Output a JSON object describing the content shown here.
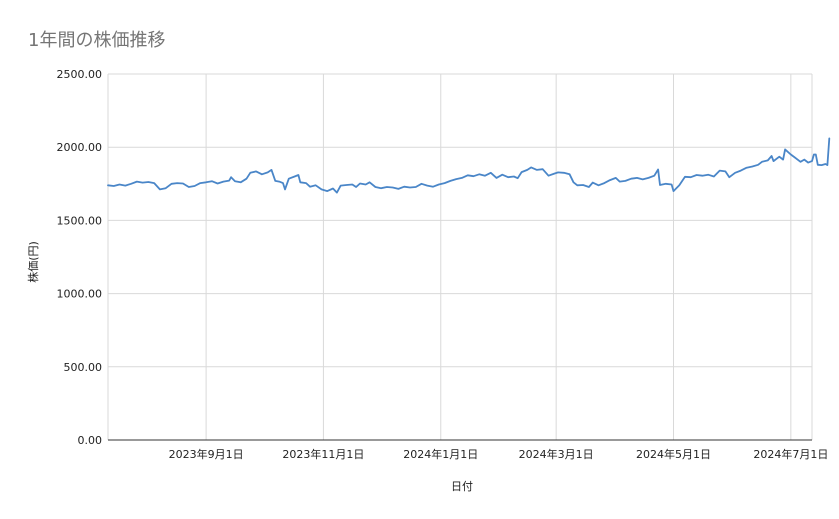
{
  "chart_data": {
    "type": "line",
    "title": "1年間の株価推移",
    "xlabel": "日付",
    "ylabel": "株価(円)",
    "ylim": [
      0,
      2500
    ],
    "yticks": [
      "0.00",
      "500.00",
      "1000.00",
      "1500.00",
      "2000.00",
      "2500.00"
    ],
    "xlim": [
      "2023-07-12",
      "2024-07-12"
    ],
    "xticks": [
      {
        "date": "2023-09-01",
        "label": "2023年9月1日"
      },
      {
        "date": "2023-11-01",
        "label": "2023年11月1日"
      },
      {
        "date": "2024-01-01",
        "label": "2024年1月1日"
      },
      {
        "date": "2024-03-01",
        "label": "2024年3月1日"
      },
      {
        "date": "2024-05-01",
        "label": "2024年5月1日"
      },
      {
        "date": "2024-07-01",
        "label": "2024年7月1日"
      }
    ],
    "grid": true,
    "legend": "none",
    "color": "#4a86c8",
    "series": [
      {
        "points": [
          [
            "2023-07-12",
            1740
          ],
          [
            "2023-07-15",
            1735
          ],
          [
            "2023-07-18",
            1745
          ],
          [
            "2023-07-21",
            1738
          ],
          [
            "2023-07-24",
            1750
          ],
          [
            "2023-07-27",
            1765
          ],
          [
            "2023-07-30",
            1758
          ],
          [
            "2023-08-02",
            1762
          ],
          [
            "2023-08-05",
            1755
          ],
          [
            "2023-08-08",
            1712
          ],
          [
            "2023-08-11",
            1720
          ],
          [
            "2023-08-14",
            1750
          ],
          [
            "2023-08-17",
            1755
          ],
          [
            "2023-08-20",
            1752
          ],
          [
            "2023-08-23",
            1728
          ],
          [
            "2023-08-26",
            1735
          ],
          [
            "2023-08-29",
            1755
          ],
          [
            "2023-09-01",
            1760
          ],
          [
            "2023-09-04",
            1768
          ],
          [
            "2023-09-07",
            1752
          ],
          [
            "2023-09-10",
            1765
          ],
          [
            "2023-09-13",
            1772
          ],
          [
            "2023-09-14",
            1795
          ],
          [
            "2023-09-16",
            1768
          ],
          [
            "2023-09-19",
            1760
          ],
          [
            "2023-09-22",
            1785
          ],
          [
            "2023-09-24",
            1825
          ],
          [
            "2023-09-27",
            1835
          ],
          [
            "2023-09-30",
            1815
          ],
          [
            "2023-10-03",
            1828
          ],
          [
            "2023-10-05",
            1845
          ],
          [
            "2023-10-07",
            1770
          ],
          [
            "2023-10-09",
            1765
          ],
          [
            "2023-10-11",
            1755
          ],
          [
            "2023-10-12",
            1712
          ],
          [
            "2023-10-14",
            1785
          ],
          [
            "2023-10-17",
            1800
          ],
          [
            "2023-10-19",
            1810
          ],
          [
            "2023-10-20",
            1760
          ],
          [
            "2023-10-23",
            1755
          ],
          [
            "2023-10-25",
            1730
          ],
          [
            "2023-10-28",
            1740
          ],
          [
            "2023-10-31",
            1712
          ],
          [
            "2023-11-03",
            1700
          ],
          [
            "2023-11-06",
            1718
          ],
          [
            "2023-11-08",
            1690
          ],
          [
            "2023-11-10",
            1738
          ],
          [
            "2023-11-13",
            1742
          ],
          [
            "2023-11-16",
            1745
          ],
          [
            "2023-11-18",
            1728
          ],
          [
            "2023-11-20",
            1752
          ],
          [
            "2023-11-23",
            1745
          ],
          [
            "2023-11-25",
            1760
          ],
          [
            "2023-11-28",
            1728
          ],
          [
            "2023-12-01",
            1720
          ],
          [
            "2023-12-04",
            1728
          ],
          [
            "2023-12-07",
            1725
          ],
          [
            "2023-12-10",
            1715
          ],
          [
            "2023-12-13",
            1730
          ],
          [
            "2023-12-16",
            1725
          ],
          [
            "2023-12-19",
            1728
          ],
          [
            "2023-12-22",
            1750
          ],
          [
            "2023-12-25",
            1738
          ],
          [
            "2023-12-28",
            1730
          ],
          [
            "2023-12-31",
            1745
          ],
          [
            "2024-01-03",
            1755
          ],
          [
            "2024-01-06",
            1770
          ],
          [
            "2024-01-09",
            1782
          ],
          [
            "2024-01-12",
            1790
          ],
          [
            "2024-01-15",
            1808
          ],
          [
            "2024-01-18",
            1802
          ],
          [
            "2024-01-21",
            1815
          ],
          [
            "2024-01-24",
            1805
          ],
          [
            "2024-01-27",
            1825
          ],
          [
            "2024-01-30",
            1790
          ],
          [
            "2024-02-02",
            1812
          ],
          [
            "2024-02-05",
            1795
          ],
          [
            "2024-02-08",
            1800
          ],
          [
            "2024-02-10",
            1788
          ],
          [
            "2024-02-12",
            1830
          ],
          [
            "2024-02-15",
            1845
          ],
          [
            "2024-02-17",
            1862
          ],
          [
            "2024-02-20",
            1845
          ],
          [
            "2024-02-23",
            1850
          ],
          [
            "2024-02-26",
            1805
          ],
          [
            "2024-02-29",
            1820
          ],
          [
            "2024-03-02",
            1828
          ],
          [
            "2024-03-05",
            1825
          ],
          [
            "2024-03-08",
            1815
          ],
          [
            "2024-03-10",
            1760
          ],
          [
            "2024-03-12",
            1740
          ],
          [
            "2024-03-15",
            1742
          ],
          [
            "2024-03-18",
            1728
          ],
          [
            "2024-03-20",
            1758
          ],
          [
            "2024-03-23",
            1740
          ],
          [
            "2024-03-26",
            1755
          ],
          [
            "2024-03-29",
            1775
          ],
          [
            "2024-04-01",
            1790
          ],
          [
            "2024-04-03",
            1765
          ],
          [
            "2024-04-06",
            1770
          ],
          [
            "2024-04-09",
            1785
          ],
          [
            "2024-04-12",
            1790
          ],
          [
            "2024-04-15",
            1780
          ],
          [
            "2024-04-18",
            1790
          ],
          [
            "2024-04-21",
            1805
          ],
          [
            "2024-04-23",
            1848
          ],
          [
            "2024-04-24",
            1742
          ],
          [
            "2024-04-27",
            1750
          ],
          [
            "2024-04-30",
            1745
          ],
          [
            "2024-05-01",
            1700
          ],
          [
            "2024-05-04",
            1740
          ],
          [
            "2024-05-07",
            1798
          ],
          [
            "2024-05-10",
            1795
          ],
          [
            "2024-05-13",
            1810
          ],
          [
            "2024-05-16",
            1805
          ],
          [
            "2024-05-19",
            1812
          ],
          [
            "2024-05-22",
            1800
          ],
          [
            "2024-05-25",
            1840
          ],
          [
            "2024-05-28",
            1835
          ],
          [
            "2024-05-30",
            1795
          ],
          [
            "2024-06-02",
            1825
          ],
          [
            "2024-06-05",
            1840
          ],
          [
            "2024-06-08",
            1860
          ],
          [
            "2024-06-11",
            1868
          ],
          [
            "2024-06-14",
            1880
          ],
          [
            "2024-06-16",
            1900
          ],
          [
            "2024-06-19",
            1910
          ],
          [
            "2024-06-21",
            1940
          ],
          [
            "2024-06-22",
            1905
          ],
          [
            "2024-06-25",
            1935
          ],
          [
            "2024-06-27",
            1915
          ],
          [
            "2024-06-28",
            1985
          ],
          [
            "2024-07-01",
            1950
          ],
          [
            "2024-07-03",
            1930
          ],
          [
            "2024-07-06",
            1900
          ],
          [
            "2024-07-08",
            1915
          ],
          [
            "2024-07-10",
            1895
          ],
          [
            "2024-07-12",
            1905
          ],
          [
            "2024-07-13",
            1950
          ],
          [
            "2024-07-14",
            1950
          ],
          [
            "2024-07-15",
            1880
          ],
          [
            "2024-07-17",
            1878
          ],
          [
            "2024-07-19",
            1885
          ],
          [
            "2024-07-20",
            1878
          ],
          [
            "2024-07-21",
            2060
          ]
        ]
      }
    ]
  }
}
